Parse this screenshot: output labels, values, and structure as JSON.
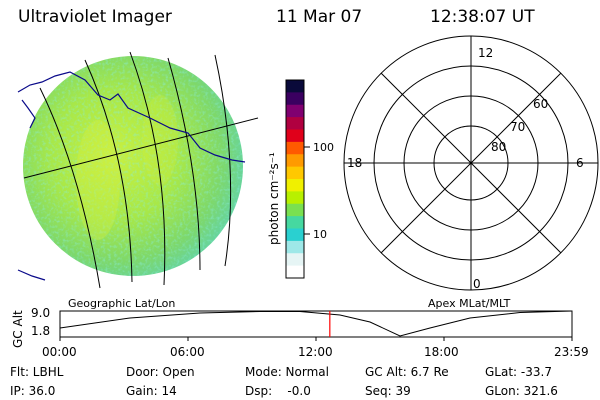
{
  "header": {
    "instrument": "Ultraviolet Imager",
    "date": "11 Mar 07",
    "time": "12:38:07 UT"
  },
  "colorbar": {
    "unit_label": "photon cm⁻²s⁻¹",
    "tick_100": "100",
    "tick_10": "10",
    "colors": [
      "#0a0a3a",
      "#3a0060",
      "#800070",
      "#b00040",
      "#e0001a",
      "#ff5a00",
      "#ff9a00",
      "#ffc800",
      "#f0f000",
      "#b8f000",
      "#7ae050",
      "#46d8a0",
      "#2ad0d0",
      "#9ee8e8",
      "#e6f5f5",
      "#ffffff"
    ]
  },
  "polar_plot": {
    "labels": {
      "top": "12",
      "bottom": "0",
      "left": "18",
      "right": "6"
    },
    "lat_labels": [
      "60",
      "70",
      "80"
    ]
  },
  "altitude_plot": {
    "ylabel": "GC Alt",
    "ymax": "9.0",
    "ymin": "1.8",
    "left_caption": "Geographic Lat/Lon",
    "right_caption": "Apex MLat/MLT",
    "x_ticks": [
      "00:00",
      "06:00",
      "12:00",
      "18:00",
      "23:59"
    ],
    "current_time_fraction": 0.527,
    "marker_color": "#ff0000"
  },
  "status": {
    "flt": "Flt: LBHL",
    "ip": "IP: 36.0",
    "door": "Door: Open",
    "gain": "Gain: 14",
    "mode": "Mode: Normal",
    "dsp": "Dsp:    -0.0",
    "gc_alt": "GC Alt: 6.7 Re",
    "seq": "Seq: 39",
    "glat": "GLat: -33.7",
    "glon": "GLon: 321.6"
  }
}
